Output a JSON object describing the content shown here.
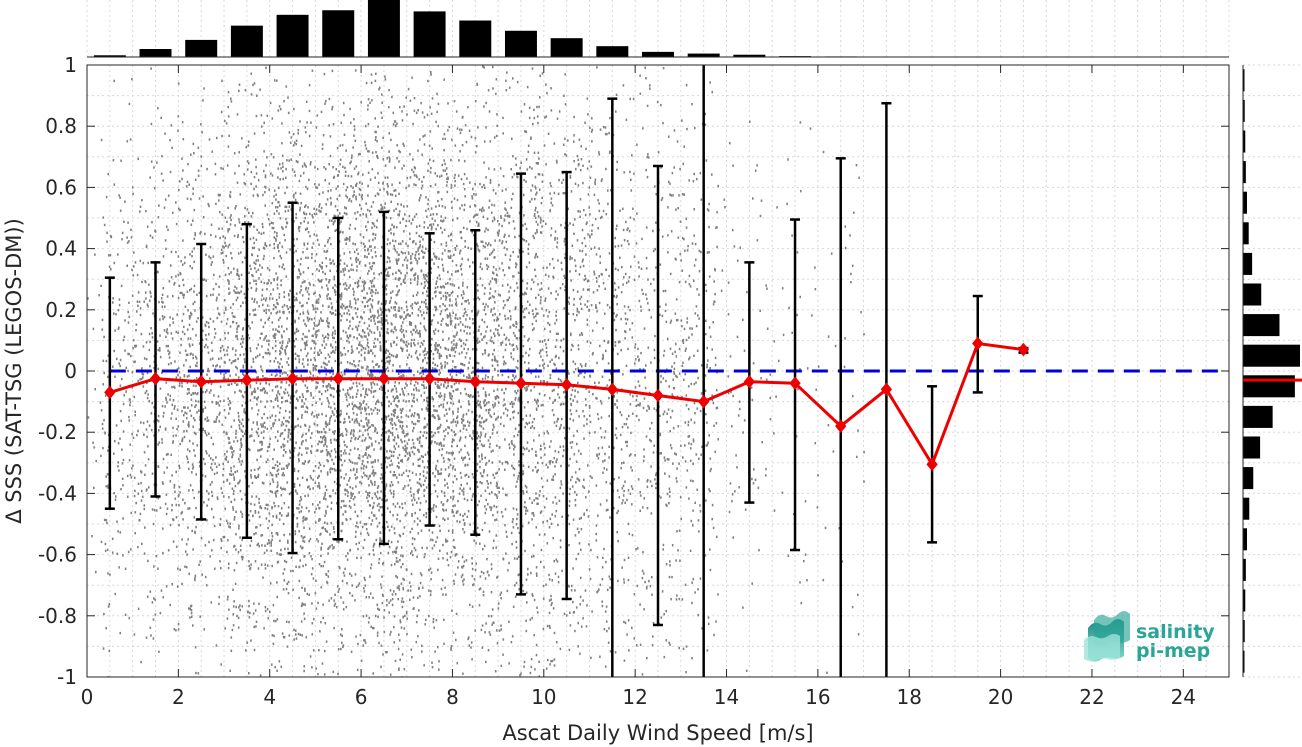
{
  "chart_data": {
    "type": "scatter",
    "xlabel": "Ascat Daily Wind Speed [m/s]",
    "ylabel": "Δ SSS (SAT-TSG (LEGOS-DM))",
    "xlim": [
      0,
      25
    ],
    "ylim": [
      -1,
      1
    ],
    "xticks": [
      0,
      2,
      4,
      6,
      8,
      10,
      12,
      14,
      16,
      18,
      20,
      22,
      24
    ],
    "yticks": [
      -1,
      -0.8,
      -0.6,
      -0.4,
      -0.2,
      0,
      0.2,
      0.4,
      0.6,
      0.8,
      1
    ],
    "ytick_labels": [
      "-1",
      "-0.8",
      "-0.6",
      "-0.4",
      "-0.2",
      "0",
      "0.2",
      "0.4",
      "0.6",
      "0.8",
      "1"
    ],
    "grid": true,
    "zero_line": {
      "y": 0,
      "style": "dashed",
      "color": "#0000dd"
    },
    "scatter_color": "#808080",
    "mean_color": "#ee0000",
    "errorbar_color": "#000000",
    "binned_stats": {
      "x": [
        0.5,
        1.5,
        2.5,
        3.5,
        4.5,
        5.5,
        6.5,
        7.5,
        8.5,
        9.5,
        10.5,
        11.5,
        12.5,
        13.5,
        14.5,
        15.5,
        16.5,
        17.5,
        18.5,
        19.5,
        20.5
      ],
      "mean": [
        -0.07,
        -0.025,
        -0.035,
        -0.03,
        -0.025,
        -0.025,
        -0.025,
        -0.025,
        -0.035,
        -0.04,
        -0.045,
        -0.06,
        -0.08,
        -0.1,
        -0.035,
        -0.04,
        -0.18,
        -0.06,
        -0.305,
        0.09,
        0.07
      ],
      "upper": [
        0.305,
        0.355,
        0.415,
        0.48,
        0.55,
        0.5,
        0.52,
        0.45,
        0.46,
        0.645,
        0.65,
        0.89,
        0.67,
        1.0,
        0.355,
        0.495,
        0.695,
        0.875,
        -0.05,
        0.245,
        0.075
      ],
      "lower": [
        -0.45,
        -0.41,
        -0.485,
        -0.545,
        -0.595,
        -0.55,
        -0.565,
        -0.505,
        -0.535,
        -0.73,
        -0.745,
        -1.0,
        -0.83,
        -1.0,
        -0.43,
        -0.585,
        -1.0,
        -1.0,
        -0.56,
        -0.07,
        0.06
      ]
    },
    "top_histogram": {
      "bin_centers": [
        0.5,
        1.5,
        2.5,
        3.5,
        4.5,
        5.5,
        6.5,
        7.5,
        8.5,
        9.5,
        10.5,
        11.5,
        12.5,
        13.5,
        14.5,
        15.5,
        16.5
      ],
      "relative_counts": [
        0.03,
        0.14,
        0.3,
        0.55,
        0.74,
        0.82,
        1.0,
        0.8,
        0.64,
        0.46,
        0.33,
        0.19,
        0.09,
        0.06,
        0.04,
        0.015,
        0.01
      ]
    },
    "right_histogram": {
      "bin_centers": [
        0.95,
        0.85,
        0.75,
        0.65,
        0.55,
        0.45,
        0.35,
        0.25,
        0.15,
        0.05,
        -0.05,
        -0.15,
        -0.25,
        -0.35,
        -0.45,
        -0.55,
        -0.65,
        -0.75,
        -0.85,
        -0.95
      ],
      "relative_counts": [
        0.02,
        0.03,
        0.04,
        0.05,
        0.07,
        0.1,
        0.16,
        0.32,
        0.64,
        1.0,
        0.91,
        0.52,
        0.3,
        0.18,
        0.11,
        0.07,
        0.05,
        0.04,
        0.03,
        0.02
      ],
      "median_line": {
        "y": -0.03,
        "color": "#ee0000"
      }
    }
  },
  "logo": {
    "line1": "salinity",
    "line2": "pi-mep",
    "color": "#2aa597"
  }
}
